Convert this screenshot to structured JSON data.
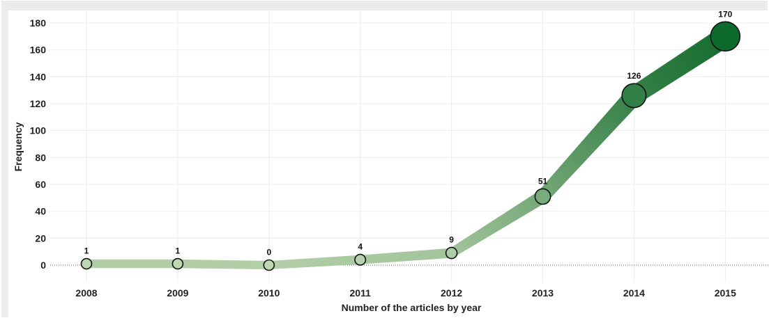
{
  "chart_data": {
    "type": "line",
    "x": [
      "2008",
      "2009",
      "2010",
      "2011",
      "2012",
      "2013",
      "2014",
      "2015"
    ],
    "series": [
      {
        "values": [
          1,
          1,
          0,
          4,
          9,
          51,
          126,
          170
        ]
      }
    ],
    "data_labels": [
      "1",
      "1",
      "0",
      "4",
      "9",
      "51",
      "126",
      "170"
    ],
    "title": "",
    "xlabel": "Number of the articles by year",
    "ylabel": "Frequency",
    "ylim": [
      -12,
      188
    ],
    "yticks": [
      0,
      20,
      40,
      60,
      80,
      100,
      120,
      140,
      160,
      180
    ],
    "ytick_labels": [
      "0",
      "20",
      "40",
      "60",
      "80",
      "100",
      "120",
      "140",
      "160",
      "180"
    ],
    "grid": true,
    "zero_line": "dotted",
    "legend": "none",
    "colors": {
      "line_light": "#b3cfa8",
      "line_dark": "#176c30",
      "marker_light": "#c0d9b5",
      "marker_dark": "#0e6a2c",
      "marker_stroke": "#111111",
      "grid": "#ececec",
      "frame": "#d6d6d6"
    }
  }
}
